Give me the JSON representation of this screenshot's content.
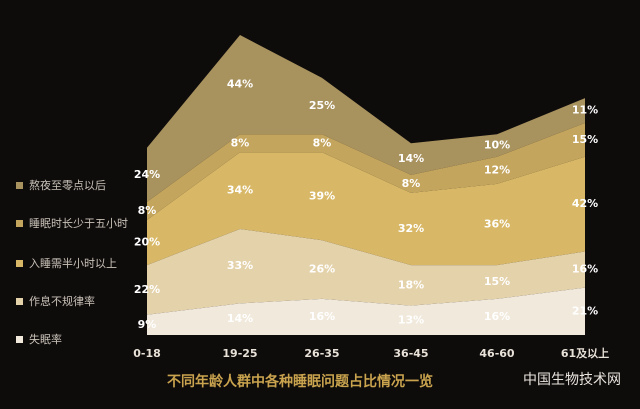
{
  "chart_data": {
    "type": "stacked_area",
    "title": "不同年龄人群中各种睡眠问题占比情况一览",
    "watermark": "中国生物技术网",
    "categories": [
      "0-18",
      "19-25",
      "26-35",
      "36-45",
      "46-60",
      "61及以上"
    ],
    "series": [
      {
        "name": "熬夜至零点以后",
        "color": "#a8925e",
        "values": [
          24,
          44,
          25,
          14,
          10,
          11
        ],
        "value_labels": [
          "24%",
          "44%",
          "25%",
          "14%",
          "10%",
          "11%"
        ]
      },
      {
        "name": "睡眠时长少于五小时",
        "color": "#c4a55e",
        "values": [
          8,
          8,
          8,
          8,
          12,
          15
        ],
        "value_labels": [
          "8%",
          "8%",
          "8%",
          "8%",
          "12%",
          "15%"
        ]
      },
      {
        "name": "入睡需半小时以上",
        "color": "#d8b866",
        "values": [
          20,
          34,
          39,
          32,
          36,
          42
        ],
        "value_labels": [
          "20%",
          "34%",
          "39%",
          "32%",
          "36%",
          "42%"
        ]
      },
      {
        "name": "作息不规律率",
        "color": "#e4d2ab",
        "values": [
          22,
          33,
          26,
          18,
          15,
          16
        ],
        "value_labels": [
          "22%",
          "33%",
          "26%",
          "18%",
          "15%",
          "16%"
        ]
      },
      {
        "name": "失眠率",
        "color": "#f1e9dc",
        "values": [
          9,
          14,
          16,
          13,
          16,
          21
        ],
        "value_labels": [
          "9%",
          "14%",
          "16%",
          "13%",
          "16%",
          "21%"
        ]
      }
    ]
  }
}
